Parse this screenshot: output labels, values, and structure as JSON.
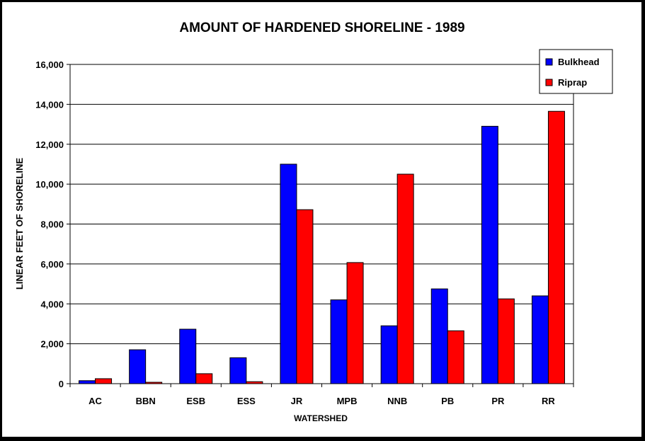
{
  "chart_data": {
    "type": "bar",
    "title": "AMOUNT OF HARDENED SHORELINE - 1989",
    "xlabel": "WATERSHED",
    "ylabel": "LINEAR FEET OF SHORELINE",
    "categories": [
      "AC",
      "BBN",
      "ESB",
      "ESS",
      "JR",
      "MPB",
      "NNB",
      "PB",
      "PR",
      "RR"
    ],
    "series": [
      {
        "name": "Bulkhead",
        "color": "#0000ff",
        "values": [
          150,
          1700,
          2730,
          1300,
          11000,
          4200,
          2900,
          4750,
          12900,
          4400
        ]
      },
      {
        "name": "Riprap",
        "color": "#ff0000",
        "values": [
          250,
          70,
          500,
          100,
          8720,
          6070,
          10500,
          2650,
          4250,
          13650
        ]
      }
    ],
    "ylim": [
      0,
      16000
    ],
    "yticks": [
      0,
      2000,
      4000,
      6000,
      8000,
      10000,
      12000,
      14000,
      16000
    ],
    "ytick_labels": [
      "0",
      "2,000",
      "4,000",
      "6,000",
      "8,000",
      "10,000",
      "12,000",
      "14,000",
      "16,000"
    ],
    "grid": true,
    "legend_position": "top-right"
  }
}
